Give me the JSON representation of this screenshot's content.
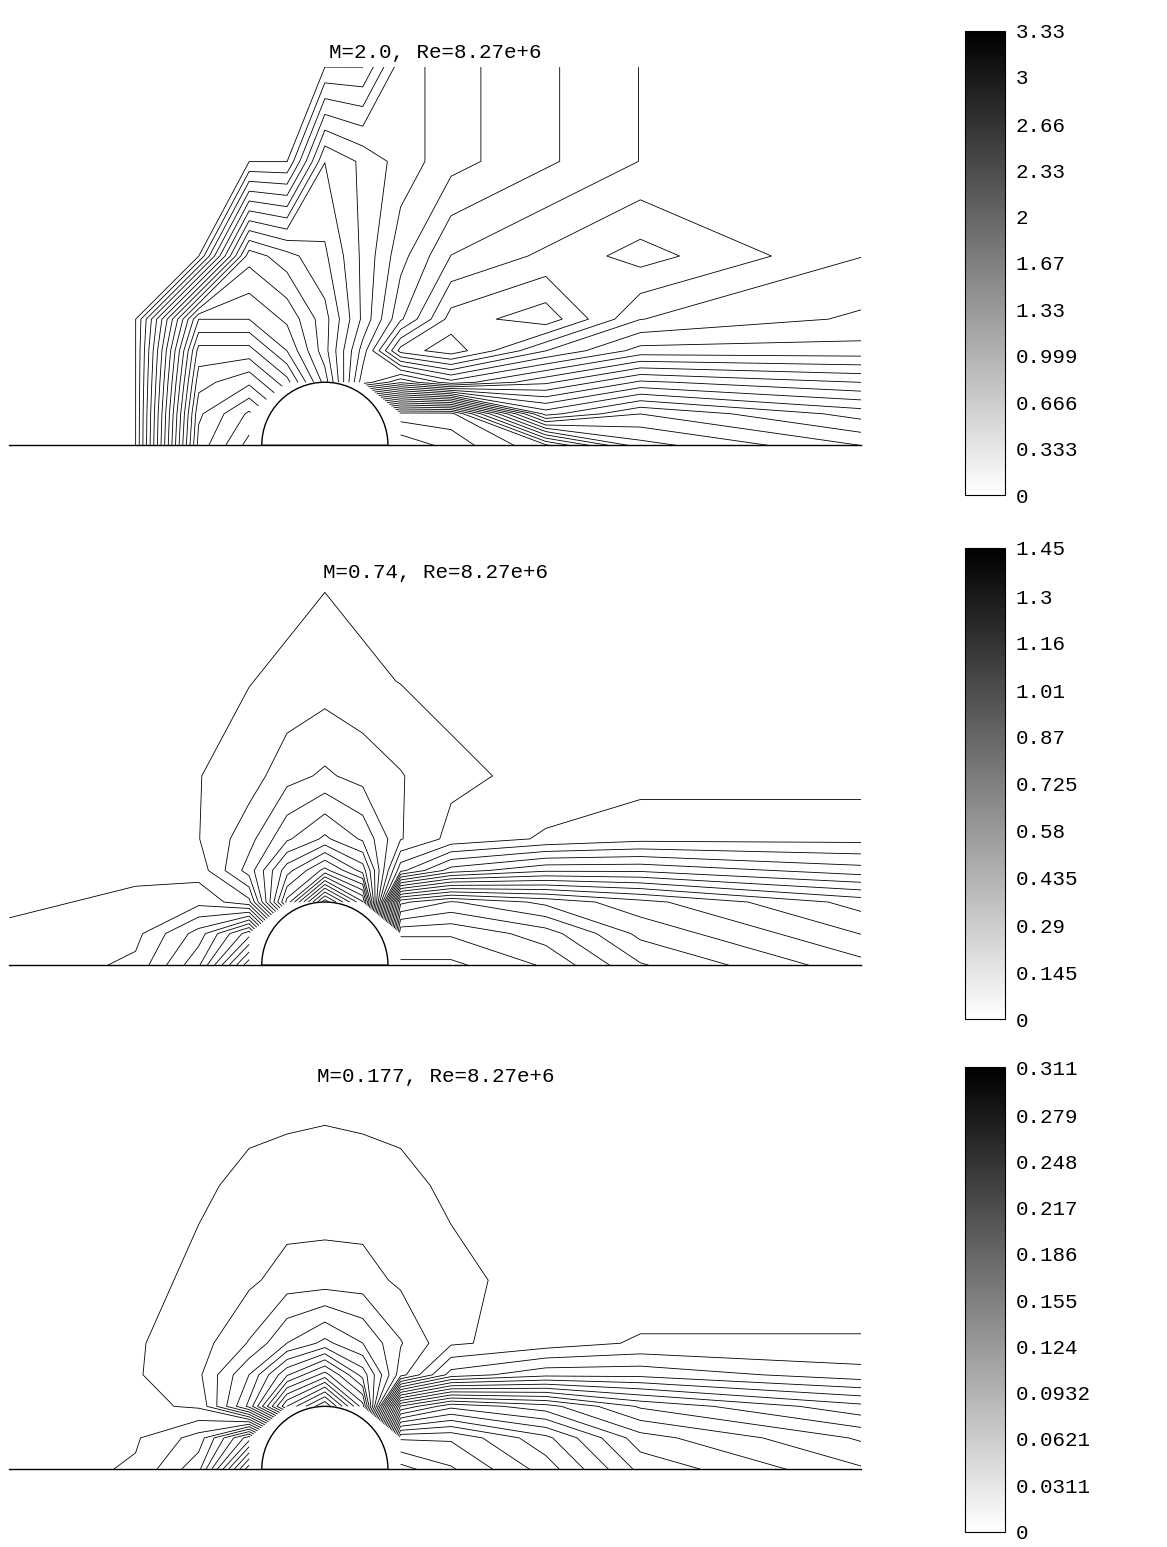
{
  "chart_data": [
    {
      "type": "contour",
      "title": "M=2.0, Re=8.27e+6",
      "x": [
        -5,
        -3,
        -2,
        -1.2,
        -0.6,
        0,
        0.6,
        1.2,
        2,
        3.5,
        5,
        8.5
      ],
      "y": [
        0,
        0.5,
        1,
        1.5,
        2,
        3,
        4.5,
        6
      ],
      "cells": [
        [
          2,
          2,
          0.55,
          0.3,
          null,
          null,
          null,
          0.1,
          0.2,
          0.4,
          0.8,
          1.0
        ],
        [
          2,
          2,
          0.6,
          0.4,
          null,
          null,
          null,
          0.3,
          0.3,
          1.2,
          1.0,
          1.2
        ],
        [
          2,
          2,
          0.7,
          0.6,
          0.8,
          1.2,
          1.8,
          1.6,
          1.8,
          1.6,
          1.4,
          1.5
        ],
        [
          2,
          2,
          0.8,
          0.8,
          1.0,
          1.3,
          1.7,
          2.2,
          2.3,
          2.0,
          1.8,
          1.8
        ],
        [
          2,
          2,
          1.0,
          1.0,
          1.1,
          1.3,
          1.6,
          1.9,
          2.2,
          2.3,
          2.0,
          1.9
        ],
        [
          2,
          2,
          2,
          1.2,
          1.3,
          1.4,
          1.6,
          1.8,
          2.0,
          2.1,
          2.2,
          2.0
        ],
        [
          2,
          2,
          2,
          2,
          2,
          1.5,
          1.6,
          1.7,
          1.8,
          1.9,
          2.0,
          2.0
        ],
        [
          2,
          2,
          2,
          2,
          2,
          2,
          2,
          1.7,
          1.8,
          1.9,
          2.0,
          2.0
        ]
      ],
      "xlim": [
        -5,
        8.5
      ],
      "ylim": [
        0,
        6
      ],
      "tick_labels": false,
      "colorbar": {
        "range": [
          0,
          3.33
        ],
        "ticks": [
          0,
          0.333,
          0.666,
          0.999,
          1.33,
          1.67,
          2,
          2.33,
          2.66,
          3,
          3.33
        ]
      }
    },
    {
      "type": "contour",
      "title": "M=0.74, Re=8.27e+6",
      "x": [
        -5,
        -3,
        -2,
        -1.2,
        -0.6,
        0,
        0.6,
        1.2,
        2,
        3.5,
        5,
        8.5
      ],
      "y": [
        0,
        0.5,
        1,
        1.5,
        2,
        3,
        4.5,
        6
      ],
      "cells": [
        [
          0.72,
          0.68,
          0.55,
          0.3,
          null,
          null,
          null,
          0.1,
          0.1,
          0.15,
          0.25,
          0.35
        ],
        [
          0.72,
          0.7,
          0.6,
          0.45,
          null,
          null,
          null,
          0.15,
          0.15,
          0.2,
          0.3,
          0.4
        ],
        [
          0.73,
          0.72,
          0.7,
          0.75,
          1.1,
          1.4,
          1.2,
          0.3,
          0.25,
          0.3,
          0.35,
          0.45
        ],
        [
          0.74,
          0.73,
          0.74,
          0.85,
          1.0,
          1.1,
          1.0,
          0.7,
          0.6,
          0.55,
          0.55,
          0.6
        ],
        [
          0.74,
          0.74,
          0.76,
          0.82,
          0.9,
          0.95,
          0.9,
          0.8,
          0.75,
          0.72,
          0.7,
          0.7
        ],
        [
          0.74,
          0.74,
          0.76,
          0.78,
          0.82,
          0.84,
          0.82,
          0.8,
          0.77,
          0.75,
          0.74,
          0.74
        ],
        [
          0.74,
          0.74,
          0.75,
          0.76,
          0.77,
          0.78,
          0.77,
          0.76,
          0.75,
          0.74,
          0.74,
          0.74
        ],
        [
          0.74,
          0.74,
          0.74,
          0.75,
          0.75,
          0.76,
          0.75,
          0.75,
          0.74,
          0.74,
          0.74,
          0.74
        ]
      ],
      "xlim": [
        -5,
        8.5
      ],
      "ylim": [
        0,
        6
      ],
      "tick_labels": false,
      "colorbar": {
        "range": [
          0,
          1.45
        ],
        "ticks": [
          0,
          0.145,
          0.29,
          0.435,
          0.58,
          0.725,
          0.87,
          1.01,
          1.16,
          1.3,
          1.45
        ]
      }
    },
    {
      "type": "contour",
      "title": "M=0.177, Re=8.27e+6",
      "x": [
        -5,
        -3,
        -2,
        -1.2,
        -0.6,
        0,
        0.6,
        1.2,
        2,
        3.5,
        5,
        8.5
      ],
      "y": [
        0,
        0.5,
        1,
        1.5,
        2,
        3,
        4.5,
        6
      ],
      "cells": [
        [
          0.176,
          0.17,
          0.15,
          0.08,
          null,
          null,
          null,
          0.02,
          0.03,
          0.05,
          0.08,
          0.1
        ],
        [
          0.176,
          0.172,
          0.16,
          0.12,
          null,
          null,
          null,
          0.04,
          0.04,
          0.06,
          0.09,
          0.11
        ],
        [
          0.177,
          0.177,
          0.18,
          0.22,
          0.28,
          0.311,
          0.26,
          0.1,
          0.08,
          0.09,
          0.11,
          0.13
        ],
        [
          0.177,
          0.178,
          0.185,
          0.21,
          0.24,
          0.26,
          0.23,
          0.19,
          0.16,
          0.15,
          0.15,
          0.16
        ],
        [
          0.177,
          0.178,
          0.183,
          0.195,
          0.21,
          0.22,
          0.21,
          0.195,
          0.18,
          0.175,
          0.17,
          0.17
        ],
        [
          0.177,
          0.177,
          0.18,
          0.185,
          0.19,
          0.19,
          0.19,
          0.185,
          0.18,
          0.177,
          0.177,
          0.177
        ],
        [
          0.177,
          0.177,
          0.178,
          0.18,
          0.181,
          0.182,
          0.181,
          0.18,
          0.178,
          0.177,
          0.177,
          0.177
        ],
        [
          0.177,
          0.177,
          0.177,
          0.177,
          0.177,
          0.177,
          0.177,
          0.177,
          0.177,
          0.177,
          0.177,
          0.177
        ]
      ],
      "xlim": [
        -5,
        8.5
      ],
      "ylim": [
        0,
        6
      ],
      "tick_labels": false,
      "colorbar": {
        "range": [
          0,
          0.311
        ],
        "ticks": [
          0,
          0.0311,
          0.0621,
          0.0932,
          0.124,
          0.155,
          0.186,
          0.217,
          0.248,
          0.279,
          0.311
        ]
      }
    }
  ]
}
